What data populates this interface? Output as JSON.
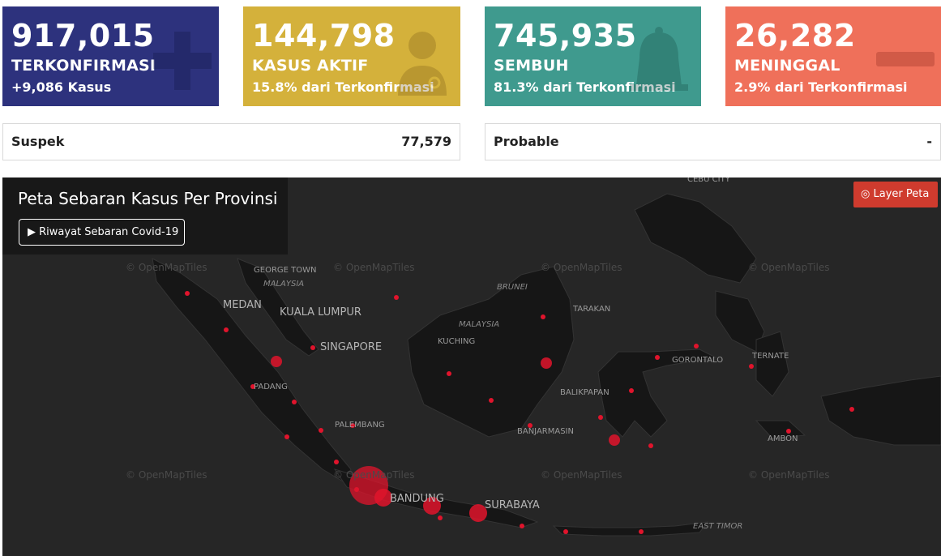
{
  "cards": [
    {
      "number": "917,015",
      "label": "TERKONFIRMASI",
      "sub": "+9,086 Kasus",
      "color": "#2d327d",
      "icon": "plus-icon"
    },
    {
      "number": "144,798",
      "label": "KASUS AKTIF",
      "sub": "15.8% dari Terkonfirmasi",
      "color": "#d4b13b",
      "icon": "doctor-icon"
    },
    {
      "number": "745,935",
      "label": "SEMBUH",
      "sub": "81.3% dari Terkonfirmasi",
      "color": "#3f9a8e",
      "icon": "bell-icon"
    },
    {
      "number": "26,282",
      "label": "MENINGGAL",
      "sub": "2.9% dari Terkonfirmasi",
      "color": "#ef705a",
      "icon": "minus-icon"
    }
  ],
  "info": {
    "suspek_label": "Suspek",
    "suspek_value": "77,579",
    "probable_label": "Probable",
    "probable_value": "-"
  },
  "map": {
    "title": "Peta Sebaran Kasus Per Provinsi",
    "history_button": "Riwayat Sebaran Covid-19",
    "layer_button": "Layer Peta",
    "attribution": "© OpenMapTiles",
    "labels": {
      "cebu_city": "CEBU CITY",
      "george_town": "GEORGE TOWN",
      "malaysia_1": "MALAYSIA",
      "medan": "MEDAN",
      "kuala_lumpur": "KUALA LUMPUR",
      "singapore": "SINGAPORE",
      "brunei": "BRUNEI",
      "tarakan": "TARAKAN",
      "malaysia_2": "MALAYSIA",
      "kuching": "KUCHING",
      "gorontalo": "GORONTALO",
      "ternate": "TERNATE",
      "padang": "PADANG",
      "balikpapan": "BALIKPAPAN",
      "palembang": "PALEMBANG",
      "banjarmasin": "BANJARMASIN",
      "ambon": "AMBON",
      "bandung": "BANDUNG",
      "surabaya": "SURABAYA",
      "east_timor": "EAST TIMOR"
    },
    "marker_color": "#e0142c"
  }
}
